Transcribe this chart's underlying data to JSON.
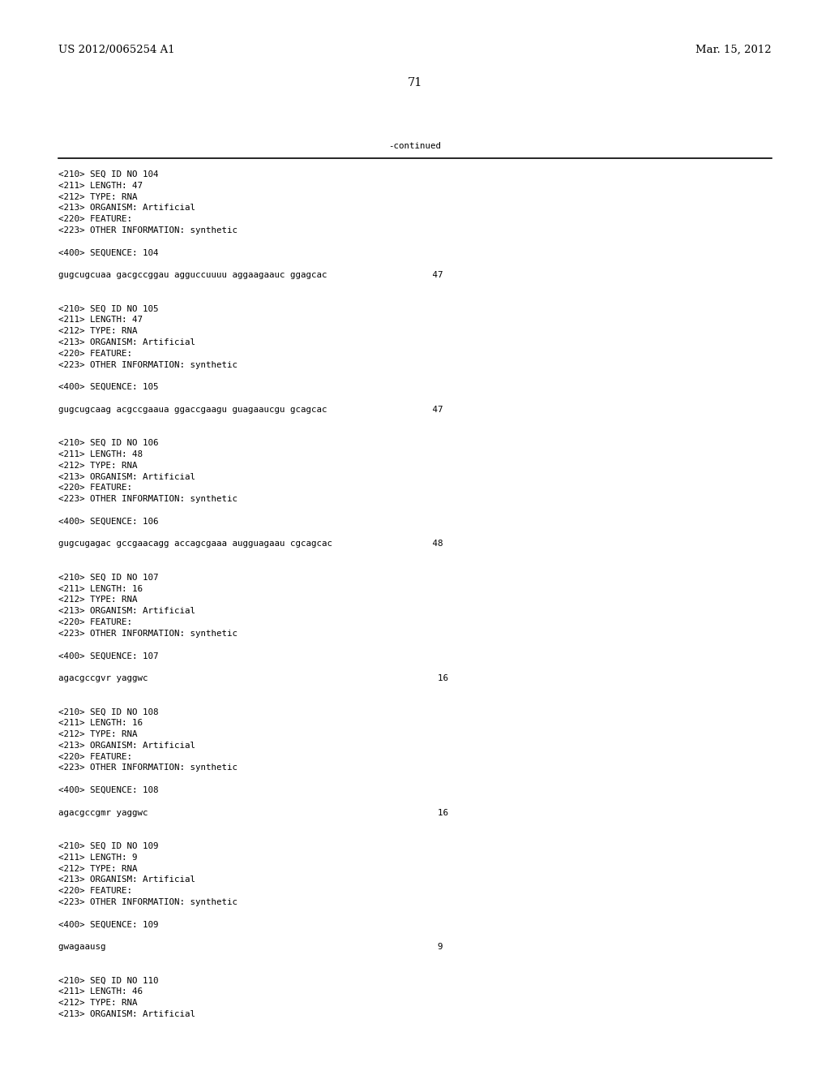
{
  "header_left": "US 2012/0065254 A1",
  "header_right": "Mar. 15, 2012",
  "page_number": "71",
  "continued_text": "-continued",
  "background_color": "#ffffff",
  "text_color": "#000000",
  "font_size_header": 9.5,
  "font_size_body": 7.8,
  "font_size_page": 10.5,
  "content_lines": [
    "<210> SEQ ID NO 104",
    "<211> LENGTH: 47",
    "<212> TYPE: RNA",
    "<213> ORGANISM: Artificial",
    "<220> FEATURE:",
    "<223> OTHER INFORMATION: synthetic",
    "",
    "<400> SEQUENCE: 104",
    "",
    "gugcugcuaa gacgccggau agguccuuuu aggaagaauc ggagcac                    47",
    "",
    "",
    "<210> SEQ ID NO 105",
    "<211> LENGTH: 47",
    "<212> TYPE: RNA",
    "<213> ORGANISM: Artificial",
    "<220> FEATURE:",
    "<223> OTHER INFORMATION: synthetic",
    "",
    "<400> SEQUENCE: 105",
    "",
    "gugcugcaag acgccgaaua ggaccgaagu guagaaucgu gcagcac                    47",
    "",
    "",
    "<210> SEQ ID NO 106",
    "<211> LENGTH: 48",
    "<212> TYPE: RNA",
    "<213> ORGANISM: Artificial",
    "<220> FEATURE:",
    "<223> OTHER INFORMATION: synthetic",
    "",
    "<400> SEQUENCE: 106",
    "",
    "gugcugagac gccgaacagg accagcgaaa augguagaau cgcagcac                   48",
    "",
    "",
    "<210> SEQ ID NO 107",
    "<211> LENGTH: 16",
    "<212> TYPE: RNA",
    "<213> ORGANISM: Artificial",
    "<220> FEATURE:",
    "<223> OTHER INFORMATION: synthetic",
    "",
    "<400> SEQUENCE: 107",
    "",
    "agacgccgvr yaggwc                                                       16",
    "",
    "",
    "<210> SEQ ID NO 108",
    "<211> LENGTH: 16",
    "<212> TYPE: RNA",
    "<213> ORGANISM: Artificial",
    "<220> FEATURE:",
    "<223> OTHER INFORMATION: synthetic",
    "",
    "<400> SEQUENCE: 108",
    "",
    "agacgccgmr yaggwc                                                       16",
    "",
    "",
    "<210> SEQ ID NO 109",
    "<211> LENGTH: 9",
    "<212> TYPE: RNA",
    "<213> ORGANISM: Artificial",
    "<220> FEATURE:",
    "<223> OTHER INFORMATION: synthetic",
    "",
    "<400> SEQUENCE: 109",
    "",
    "gwagaausg                                                               9",
    "",
    "",
    "<210> SEQ ID NO 110",
    "<211> LENGTH: 46",
    "<212> TYPE: RNA",
    "<213> ORGANISM: Artificial"
  ]
}
